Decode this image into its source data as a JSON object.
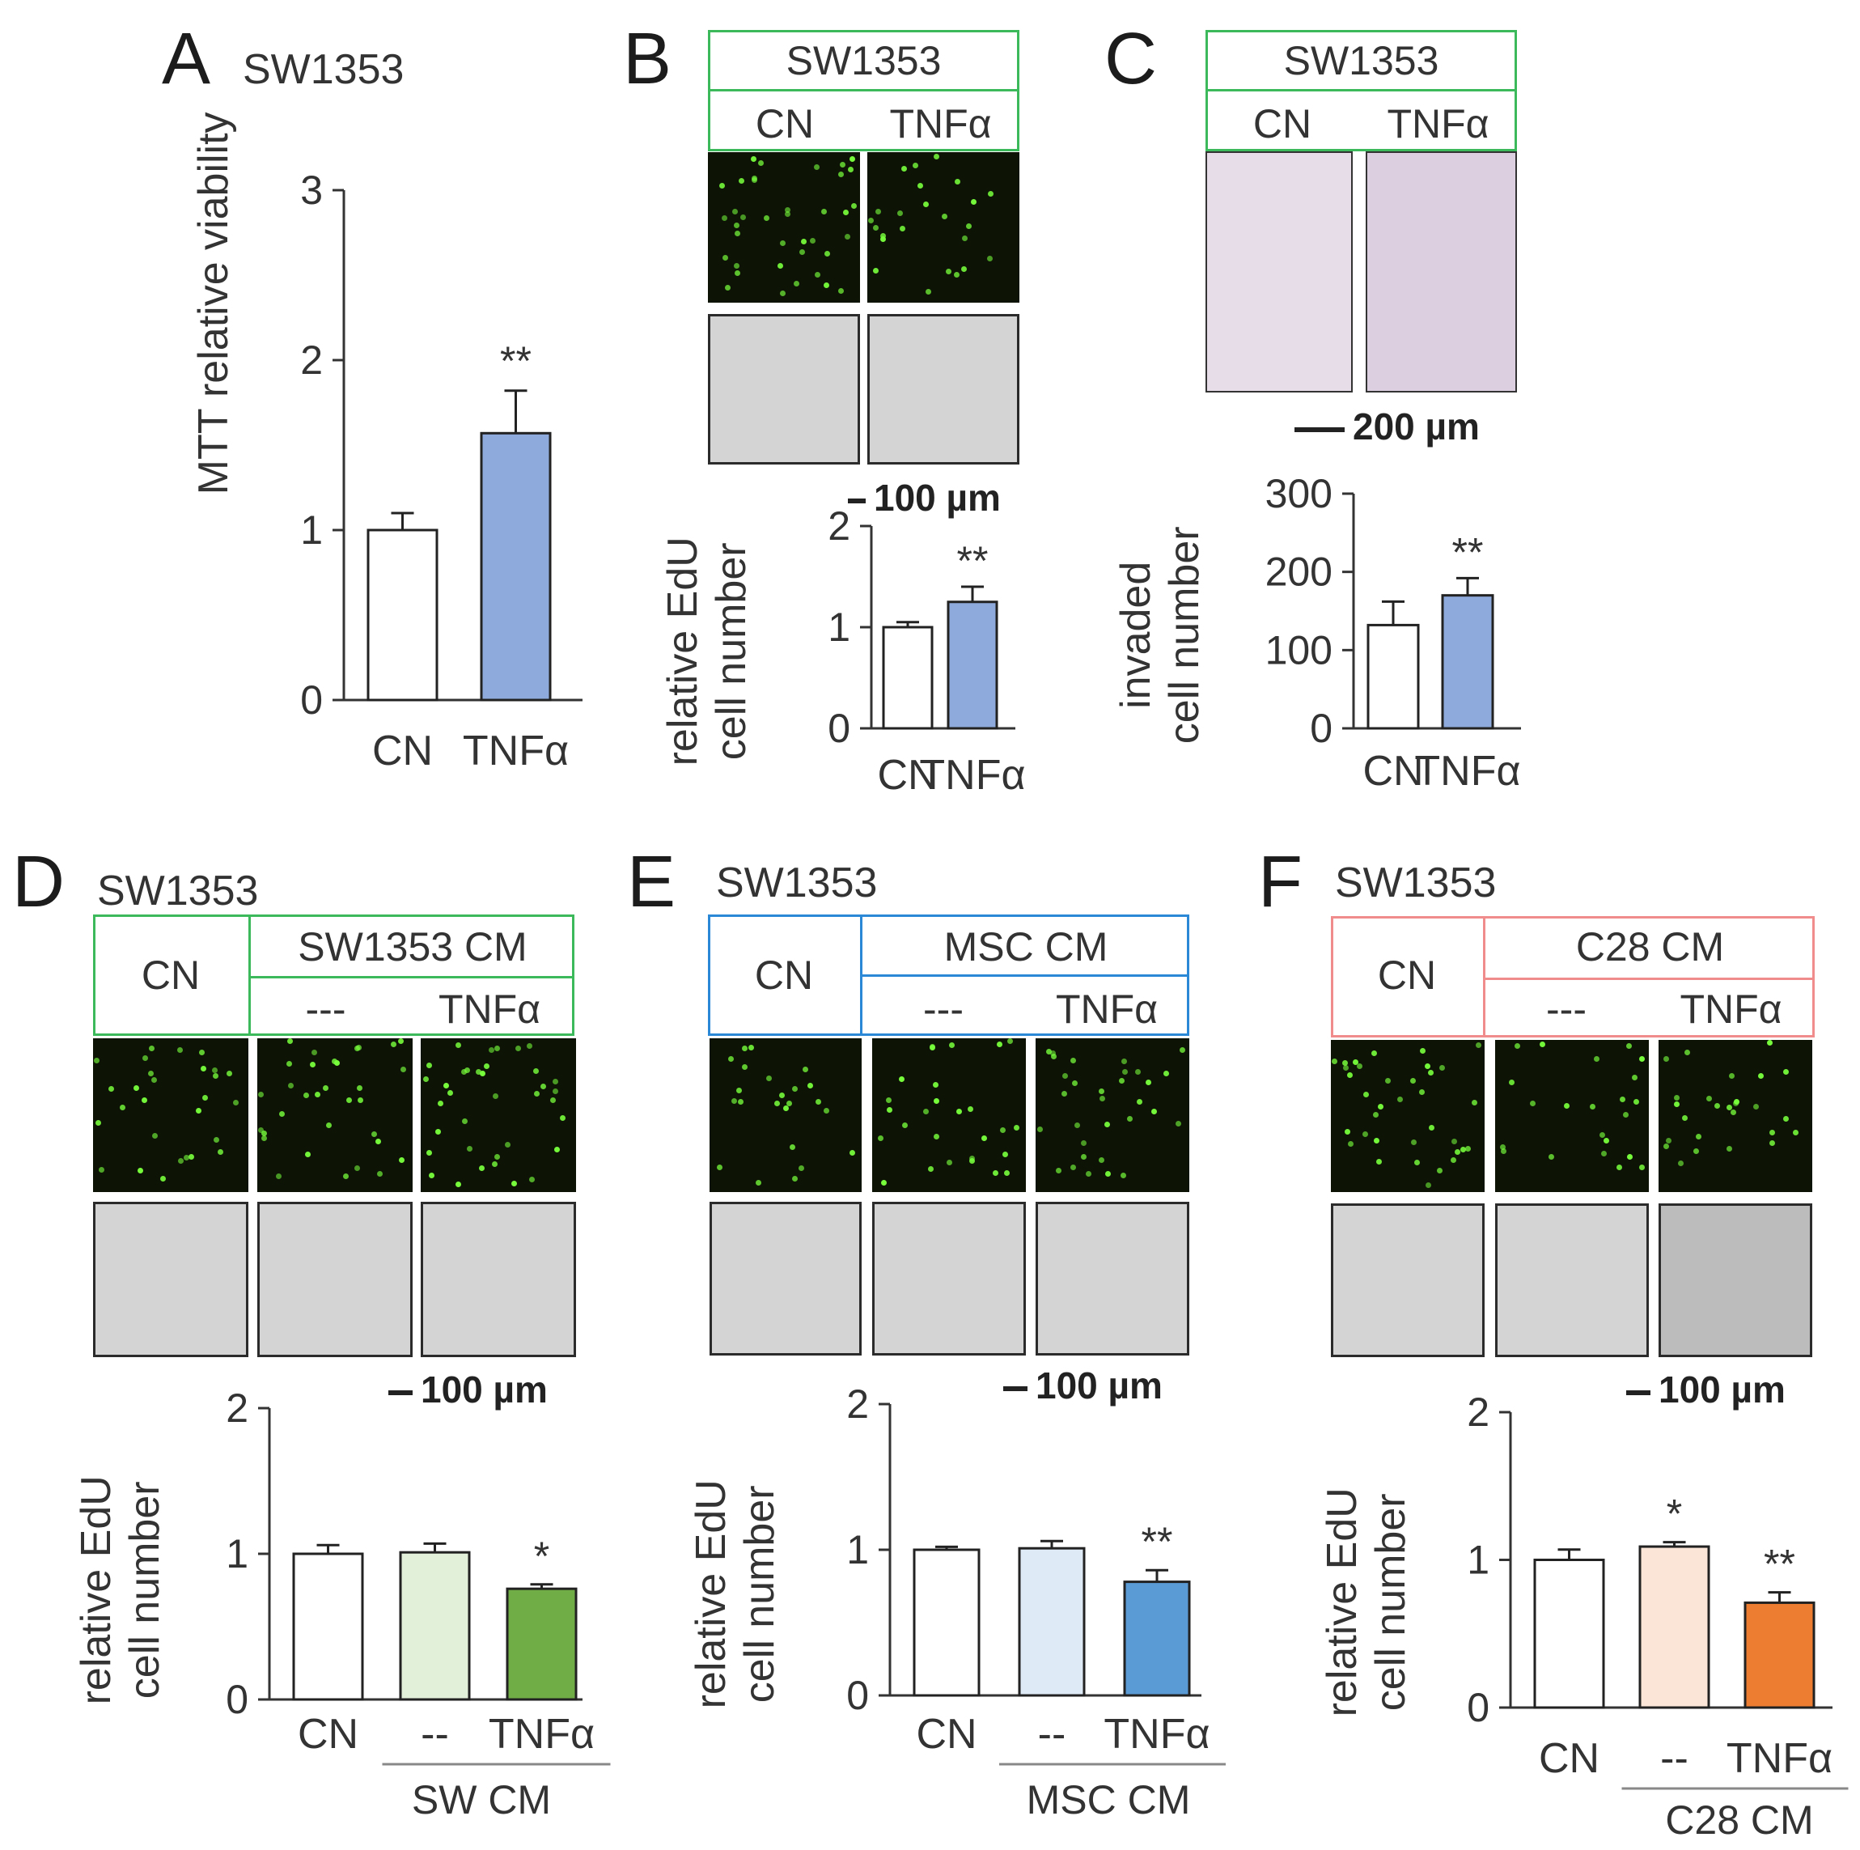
{
  "panels": {
    "A": {
      "letter": "A",
      "cell_line": "SW1353"
    },
    "B": {
      "letter": "B",
      "header_title": "SW1353",
      "col1": "CN",
      "col2": "TNFα",
      "scale": "100 µm"
    },
    "C": {
      "letter": "C",
      "header_title": "SW1353",
      "col1": "CN",
      "col2": "TNFα",
      "scale": "200 µm"
    },
    "D": {
      "letter": "D",
      "cell_line": "SW1353",
      "hdr_cn": "CN",
      "hdr_cm": "SW1353 CM",
      "hdr_dash": "---",
      "hdr_tnf": "TNFα",
      "scale": "100 µm",
      "group_label": "SW CM",
      "frame_color": "#3cb95a"
    },
    "E": {
      "letter": "E",
      "cell_line": "SW1353",
      "hdr_cn": "CN",
      "hdr_cm": "MSC CM",
      "hdr_dash": "---",
      "hdr_tnf": "TNFα",
      "scale": "100 µm",
      "group_label": "MSC CM",
      "frame_color": "#2b88d6"
    },
    "F": {
      "letter": "F",
      "cell_line": "SW1353",
      "hdr_cn": "CN",
      "hdr_cm": "C28 CM",
      "hdr_dash": "---",
      "hdr_tnf": "TNFα",
      "scale": "100 µm",
      "group_label": "C28 CM",
      "frame_color": "#f08c8c"
    }
  },
  "colors": {
    "header_green": "#3cb95a"
  },
  "chart_data": [
    {
      "id": "A",
      "type": "bar",
      "ylabel": "MTT relative viability",
      "ylim": [
        0,
        3
      ],
      "yticks": [
        "0",
        "1",
        "2",
        "3"
      ],
      "categories": [
        "CN",
        "TNFα"
      ],
      "values": [
        1.0,
        1.57
      ],
      "errors": [
        0.1,
        0.25
      ],
      "colors": [
        "#ffffff",
        "#8ea9db"
      ],
      "significance": [
        "",
        "**"
      ]
    },
    {
      "id": "B",
      "type": "bar",
      "ylabel": [
        "relative EdU",
        "cell number"
      ],
      "ylim": [
        0,
        2
      ],
      "yticks": [
        "0",
        "1",
        "2"
      ],
      "categories": [
        "CN",
        "TNFα"
      ],
      "values": [
        1.0,
        1.25
      ],
      "errors": [
        0.05,
        0.15
      ],
      "colors": [
        "#ffffff",
        "#8ea9db"
      ],
      "significance": [
        "",
        "**"
      ]
    },
    {
      "id": "C",
      "type": "bar",
      "ylabel": [
        "invaded",
        "cell number"
      ],
      "ylim": [
        0,
        300
      ],
      "yticks": [
        "0",
        "100",
        "200",
        "300"
      ],
      "categories": [
        "CN",
        "TNFα"
      ],
      "values": [
        132,
        170
      ],
      "errors": [
        30,
        22
      ],
      "colors": [
        "#ffffff",
        "#8ea9db"
      ],
      "significance": [
        "",
        "**"
      ]
    },
    {
      "id": "D",
      "type": "bar",
      "ylabel": [
        "relative EdU",
        "cell number"
      ],
      "ylim": [
        0,
        2
      ],
      "yticks": [
        "0",
        "1",
        "2"
      ],
      "categories": [
        "CN",
        "--",
        "TNFα"
      ],
      "values": [
        1.0,
        1.01,
        0.76
      ],
      "errors": [
        0.06,
        0.06,
        0.03
      ],
      "colors": [
        "#ffffff",
        "#e2efd9",
        "#70ad47"
      ],
      "significance": [
        "",
        "",
        "*"
      ]
    },
    {
      "id": "E",
      "type": "bar",
      "ylabel": [
        "relative EdU",
        "cell number"
      ],
      "ylim": [
        0,
        2
      ],
      "yticks": [
        "0",
        "1",
        "2"
      ],
      "categories": [
        "CN",
        "--",
        "TNFα"
      ],
      "values": [
        1.0,
        1.01,
        0.78
      ],
      "errors": [
        0.02,
        0.05,
        0.08
      ],
      "colors": [
        "#ffffff",
        "#deebf7",
        "#5b9bd5"
      ],
      "significance": [
        "",
        "",
        "**"
      ]
    },
    {
      "id": "F",
      "type": "bar",
      "ylabel": [
        "relative EdU",
        "cell number"
      ],
      "ylim": [
        0,
        2
      ],
      "yticks": [
        "0",
        "1",
        "2"
      ],
      "categories": [
        "CN",
        "--",
        "TNFα"
      ],
      "values": [
        1.0,
        1.09,
        0.71
      ],
      "errors": [
        0.07,
        0.03,
        0.07
      ],
      "colors": [
        "#ffffff",
        "#fbe5d6",
        "#ed7d31"
      ],
      "significance": [
        "",
        "*",
        "**"
      ]
    }
  ]
}
